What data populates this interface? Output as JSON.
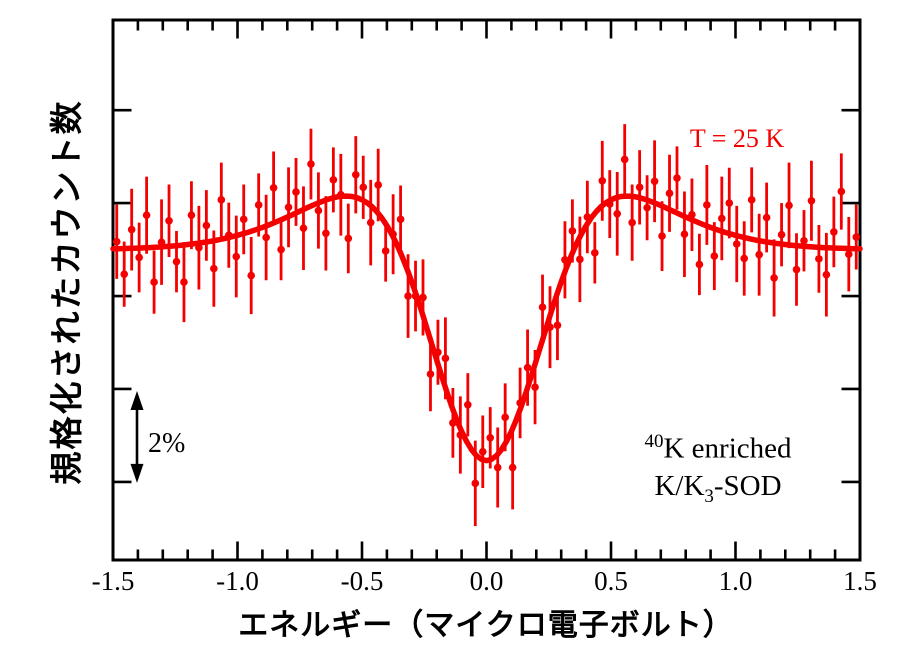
{
  "figure": {
    "background": "#ffffff"
  },
  "annotations": {
    "temperature": "T = 25 K",
    "sample": {
      "isotope_superscript": "40",
      "line1_text": "K enriched",
      "line2_pre": "K/K",
      "line2_sub": "3",
      "line2_post": "-SOD"
    },
    "scale_bar_label": "2%"
  },
  "chart_data": {
    "type": "scatter",
    "title": "",
    "x_label": "エネルギー（マイクロ電子ボルト）",
    "y_label": "規格化されたカウント数",
    "x_ticks": [
      -1.5,
      -1.0,
      -0.5,
      0.0,
      0.5,
      1.0,
      1.5
    ],
    "x_tick_labels": [
      "-1.5",
      "-1.0",
      "-0.5",
      "0.0",
      "0.5",
      "1.0",
      "1.5"
    ],
    "x_minor_tick_step": 0.1,
    "y_ticks_pct": [
      95,
      97,
      99,
      101,
      103
    ],
    "y_tick_labels": [],
    "xlim": [
      -1.5,
      1.5
    ],
    "ylim_pct": [
      93.32,
      104.94
    ],
    "grid": false,
    "legend": false,
    "scale_bar": {
      "label": "2%",
      "from_pct": 95,
      "to_pct": 97
    },
    "colors": {
      "data": "#f40000",
      "axes": "#000000",
      "text": "#000000"
    },
    "fit_curve": {
      "model": "baseline - dip_gaussian + bump_gaussian",
      "baseline_pct": 100,
      "dip_amplitude_pct": 7.8,
      "dip_sigma": 0.23,
      "bump_amplitude_pct": 3.26,
      "bump_sigma": 0.46,
      "dip_center": 0.0,
      "dip_depth_pct": -4.54,
      "bump_peak_pct": 1.15,
      "bump_positions": [
        -0.57,
        0.57
      ]
    },
    "points_format": [
      "energy_microeV",
      "normalized_counts_pct",
      "error_pct"
    ],
    "points": [
      [
        -1.485,
        100.17,
        0.8
      ],
      [
        -1.455,
        99.47,
        0.7
      ],
      [
        -1.425,
        100.43,
        0.88
      ],
      [
        -1.395,
        99.83,
        0.75
      ],
      [
        -1.365,
        100.74,
        0.83
      ],
      [
        -1.335,
        99.3,
        0.68
      ],
      [
        -1.305,
        100.16,
        0.92
      ],
      [
        -1.275,
        100.62,
        0.78
      ],
      [
        -1.245,
        99.74,
        0.66
      ],
      [
        -1.215,
        99.3,
        0.86
      ],
      [
        -1.185,
        100.74,
        0.73
      ],
      [
        -1.155,
        100.04,
        0.9
      ],
      [
        -1.125,
        100.52,
        0.76
      ],
      [
        -1.095,
        99.59,
        0.82
      ],
      [
        -1.065,
        101.07,
        0.8
      ],
      [
        -1.035,
        100.31,
        0.7
      ],
      [
        -1.005,
        99.85,
        0.88
      ],
      [
        -0.975,
        100.65,
        0.75
      ],
      [
        -0.945,
        99.44,
        0.83
      ],
      [
        -0.915,
        100.96,
        0.68
      ],
      [
        -0.885,
        100.26,
        0.92
      ],
      [
        -0.855,
        101.33,
        0.78
      ],
      [
        -0.825,
        100.0,
        0.66
      ],
      [
        -0.795,
        100.91,
        0.86
      ],
      [
        -0.765,
        101.24,
        0.73
      ],
      [
        -0.735,
        100.46,
        0.9
      ],
      [
        -0.705,
        101.84,
        0.76
      ],
      [
        -0.675,
        100.84,
        0.82
      ],
      [
        -0.645,
        100.35,
        0.8
      ],
      [
        -0.615,
        101.5,
        0.7
      ],
      [
        -0.585,
        101.18,
        0.88
      ],
      [
        -0.555,
        100.24,
        0.75
      ],
      [
        -0.525,
        101.61,
        0.83
      ],
      [
        -0.495,
        101.34,
        0.68
      ],
      [
        -0.465,
        100.58,
        0.92
      ],
      [
        -0.435,
        101.39,
        0.78
      ],
      [
        -0.405,
        99.97,
        0.66
      ],
      [
        -0.375,
        100.33,
        0.86
      ],
      [
        -0.345,
        100.65,
        0.73
      ],
      [
        -0.315,
        99.0,
        0.9
      ],
      [
        -0.285,
        99.0,
        0.76
      ],
      [
        -0.255,
        98.97,
        0.82
      ],
      [
        -0.225,
        97.32,
        0.8
      ],
      [
        -0.195,
        97.79,
        0.7
      ],
      [
        -0.165,
        97.66,
        0.88
      ],
      [
        -0.135,
        96.27,
        0.75
      ],
      [
        -0.105,
        96.01,
        0.83
      ],
      [
        -0.075,
        96.66,
        0.68
      ],
      [
        -0.045,
        94.97,
        0.92
      ],
      [
        -0.015,
        95.65,
        0.78
      ],
      [
        0.015,
        95.95,
        0.66
      ],
      [
        0.045,
        95.31,
        0.86
      ],
      [
        0.075,
        96.39,
        0.73
      ],
      [
        0.105,
        95.31,
        0.9
      ],
      [
        0.135,
        96.7,
        0.76
      ],
      [
        0.165,
        97.46,
        0.82
      ],
      [
        0.195,
        97.04,
        0.8
      ],
      [
        0.225,
        98.76,
        0.7
      ],
      [
        0.255,
        98.33,
        0.88
      ],
      [
        0.285,
        98.37,
        0.75
      ],
      [
        0.315,
        99.78,
        0.83
      ],
      [
        0.345,
        100.4,
        0.68
      ],
      [
        0.375,
        99.79,
        0.92
      ],
      [
        0.405,
        100.7,
        0.78
      ],
      [
        0.435,
        99.93,
        0.66
      ],
      [
        0.465,
        101.48,
        0.86
      ],
      [
        0.495,
        100.98,
        0.73
      ],
      [
        0.525,
        100.77,
        0.9
      ],
      [
        0.555,
        101.94,
        0.76
      ],
      [
        0.585,
        100.58,
        0.82
      ],
      [
        0.615,
        101.34,
        0.8
      ],
      [
        0.645,
        100.9,
        0.7
      ],
      [
        0.675,
        101.47,
        0.88
      ],
      [
        0.705,
        100.29,
        0.75
      ],
      [
        0.735,
        101.21,
        0.83
      ],
      [
        0.765,
        101.54,
        0.68
      ],
      [
        0.795,
        100.33,
        0.92
      ],
      [
        0.825,
        100.75,
        0.78
      ],
      [
        0.855,
        99.68,
        0.66
      ],
      [
        0.885,
        100.96,
        0.86
      ],
      [
        0.915,
        99.86,
        0.73
      ],
      [
        0.945,
        100.67,
        0.9
      ],
      [
        0.975,
        101.0,
        0.76
      ],
      [
        1.005,
        100.12,
        0.82
      ],
      [
        1.035,
        99.81,
        0.8
      ],
      [
        1.065,
        101.07,
        0.7
      ],
      [
        1.095,
        99.89,
        0.88
      ],
      [
        1.125,
        100.69,
        0.75
      ],
      [
        1.155,
        99.39,
        0.83
      ],
      [
        1.185,
        100.32,
        0.68
      ],
      [
        1.215,
        100.95,
        0.92
      ],
      [
        1.245,
        99.57,
        0.78
      ],
      [
        1.275,
        100.19,
        0.66
      ],
      [
        1.305,
        101.05,
        0.86
      ],
      [
        1.335,
        99.8,
        0.73
      ],
      [
        1.365,
        99.46,
        0.9
      ],
      [
        1.395,
        100.38,
        0.76
      ],
      [
        1.425,
        101.25,
        0.82
      ],
      [
        1.455,
        99.9,
        0.8
      ],
      [
        1.485,
        100.27,
        0.7
      ]
    ]
  }
}
